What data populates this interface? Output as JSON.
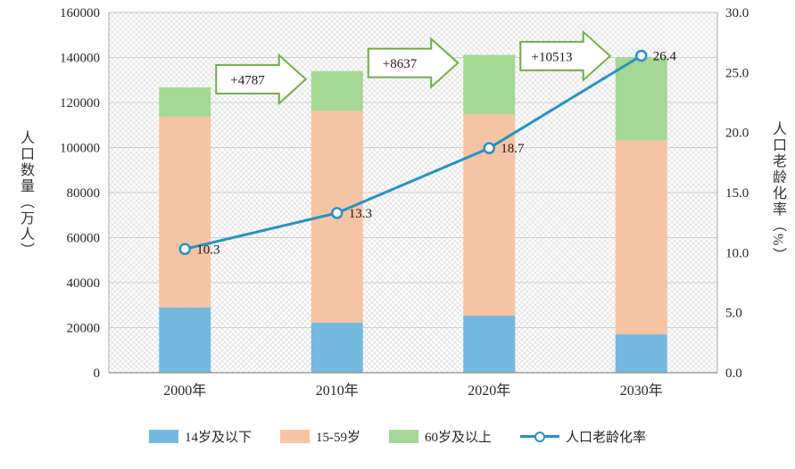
{
  "chart_data": {
    "type": "bar",
    "subtype": "stacked-bar-with-line",
    "categories": [
      "2000年",
      "2010年",
      "2020年",
      "2030年"
    ],
    "series": [
      {
        "name": "14岁及以下",
        "type": "bar",
        "color": "#74b9e0",
        "values": [
          29012,
          22246,
          25338,
          17000
        ]
      },
      {
        "name": "15-59岁",
        "type": "bar",
        "color": "#f4c4a4",
        "values": [
          84733,
          93961,
          89438,
          86200
        ]
      },
      {
        "name": "60岁及以上",
        "type": "bar",
        "color": "#a5d794",
        "values": [
          12998,
          17785,
          26422,
          36935
        ]
      },
      {
        "name": "人口老龄化率",
        "type": "line",
        "color": "#2593c5",
        "values": [
          10.3,
          13.3,
          18.7,
          26.4
        ],
        "data_labels": [
          "10.3",
          "13.3",
          "18.7",
          "26.4"
        ]
      }
    ],
    "left_axis": {
      "title": "人口数量（万人）",
      "min": 0,
      "max": 160000,
      "step": 20000,
      "ticks": [
        "0",
        "20000",
        "40000",
        "60000",
        "80000",
        "100000",
        "120000",
        "140000",
        "160000"
      ]
    },
    "right_axis": {
      "title": "人口老龄化率（%）",
      "min": 0,
      "max": 30,
      "step": 5,
      "ticks": [
        "0.0",
        "5.0",
        "10.0",
        "15.0",
        "20.0",
        "25.0",
        "30.0"
      ]
    },
    "annotations": [
      {
        "label": "+4787",
        "between": [
          0,
          1
        ]
      },
      {
        "label": "+8637",
        "between": [
          1,
          2
        ]
      },
      {
        "label": "+10513",
        "between": [
          2,
          3
        ]
      }
    ],
    "annotation_color": "#70ad47",
    "grid": true,
    "legend_position": "bottom"
  }
}
